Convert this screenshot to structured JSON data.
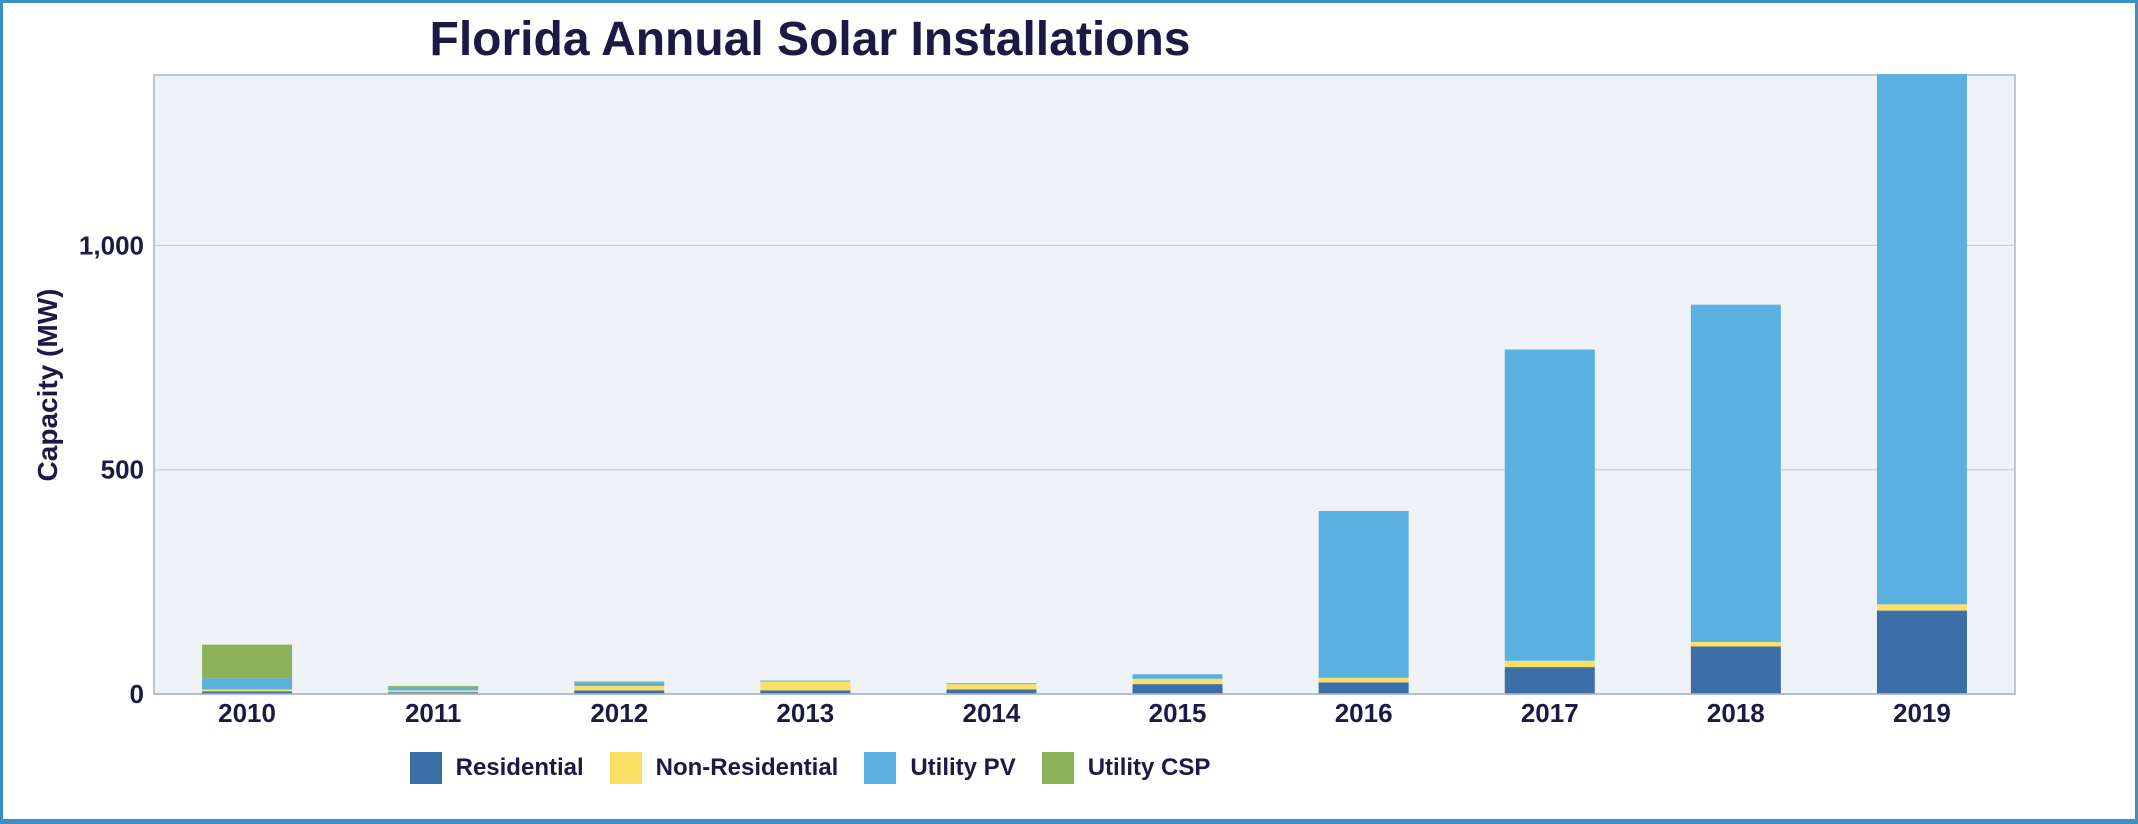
{
  "chart_data": {
    "type": "bar",
    "stacked": true,
    "title": "Florida Annual Solar Installations",
    "xlabel": "",
    "ylabel": "Capacity (MW)",
    "ylim": [
      0,
      1380
    ],
    "yticks": [
      0,
      500,
      1000
    ],
    "ytick_labels": [
      "0",
      "500",
      "1,000"
    ],
    "grid": true,
    "legend_position": "bottom",
    "categories": [
      "2010",
      "2011",
      "2012",
      "2013",
      "2014",
      "2015",
      "2016",
      "2017",
      "2018",
      "2019"
    ],
    "series": [
      {
        "name": "Residential",
        "color": "#3c6ea8",
        "values": [
          6,
          4,
          8,
          8,
          10,
          22,
          26,
          60,
          106,
          186
        ]
      },
      {
        "name": "Non-Residential",
        "color": "#fbe067",
        "values": [
          4,
          4,
          10,
          20,
          12,
          12,
          10,
          14,
          10,
          14
        ]
      },
      {
        "name": "Utility PV",
        "color": "#5ab0de",
        "values": [
          25,
          8,
          8,
          2,
          2,
          10,
          372,
          694,
          752,
          1182
        ]
      },
      {
        "name": "Utility CSP",
        "color": "#8db35a",
        "values": [
          75,
          2,
          2,
          0,
          0,
          0,
          0,
          0,
          0,
          0
        ]
      }
    ]
  },
  "colors": {
    "plot_background": "#eff3f7",
    "grid": "#c7ccd6",
    "text": "#1c1a44",
    "frame": "#3b8ec6"
  }
}
